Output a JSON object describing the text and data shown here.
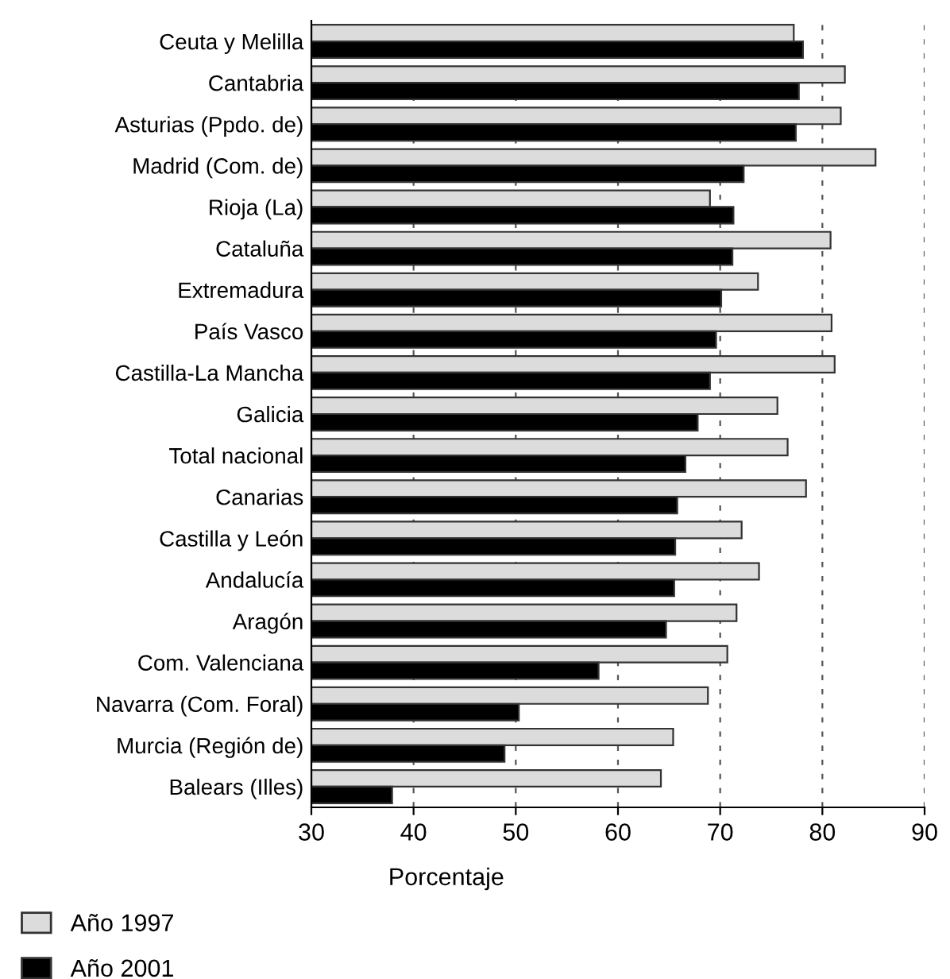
{
  "chart_data": {
    "type": "bar",
    "orientation": "horizontal",
    "xlabel": "Porcentaje",
    "categories": [
      "Ceuta y Melilla",
      "Cantabria",
      "Asturias (Ppdo. de)",
      "Madrid (Com. de)",
      "Rioja (La)",
      "Cataluña",
      "Extremadura",
      "País Vasco",
      "Castilla-La Mancha",
      "Galicia",
      "Total nacional",
      "Canarias",
      "Castilla y León",
      "Andalucía",
      "Aragón",
      "Com. Valenciana",
      "Navarra (Com. Foral)",
      "Murcia (Región de)",
      "Balears (Illes)"
    ],
    "series": [
      {
        "name": "Año 1997",
        "color": "#dcdcdc",
        "values": [
          77.2,
          82.2,
          81.8,
          85.2,
          69.0,
          80.8,
          73.7,
          80.9,
          81.2,
          75.6,
          76.6,
          78.4,
          72.1,
          73.8,
          71.6,
          70.7,
          68.8,
          65.4,
          64.2
        ]
      },
      {
        "name": "Año 2001",
        "color": "#000000",
        "values": [
          78.1,
          77.7,
          77.4,
          72.3,
          71.3,
          71.2,
          70.1,
          69.6,
          69.0,
          67.8,
          66.6,
          65.8,
          65.6,
          65.5,
          64.7,
          58.1,
          50.3,
          48.9,
          37.9
        ]
      }
    ],
    "xlim": [
      30,
      90
    ],
    "xticks": [
      30,
      40,
      50,
      60,
      70,
      80,
      90
    ],
    "grid": "x",
    "legend": "bottom left",
    "line_style": "dashed"
  }
}
